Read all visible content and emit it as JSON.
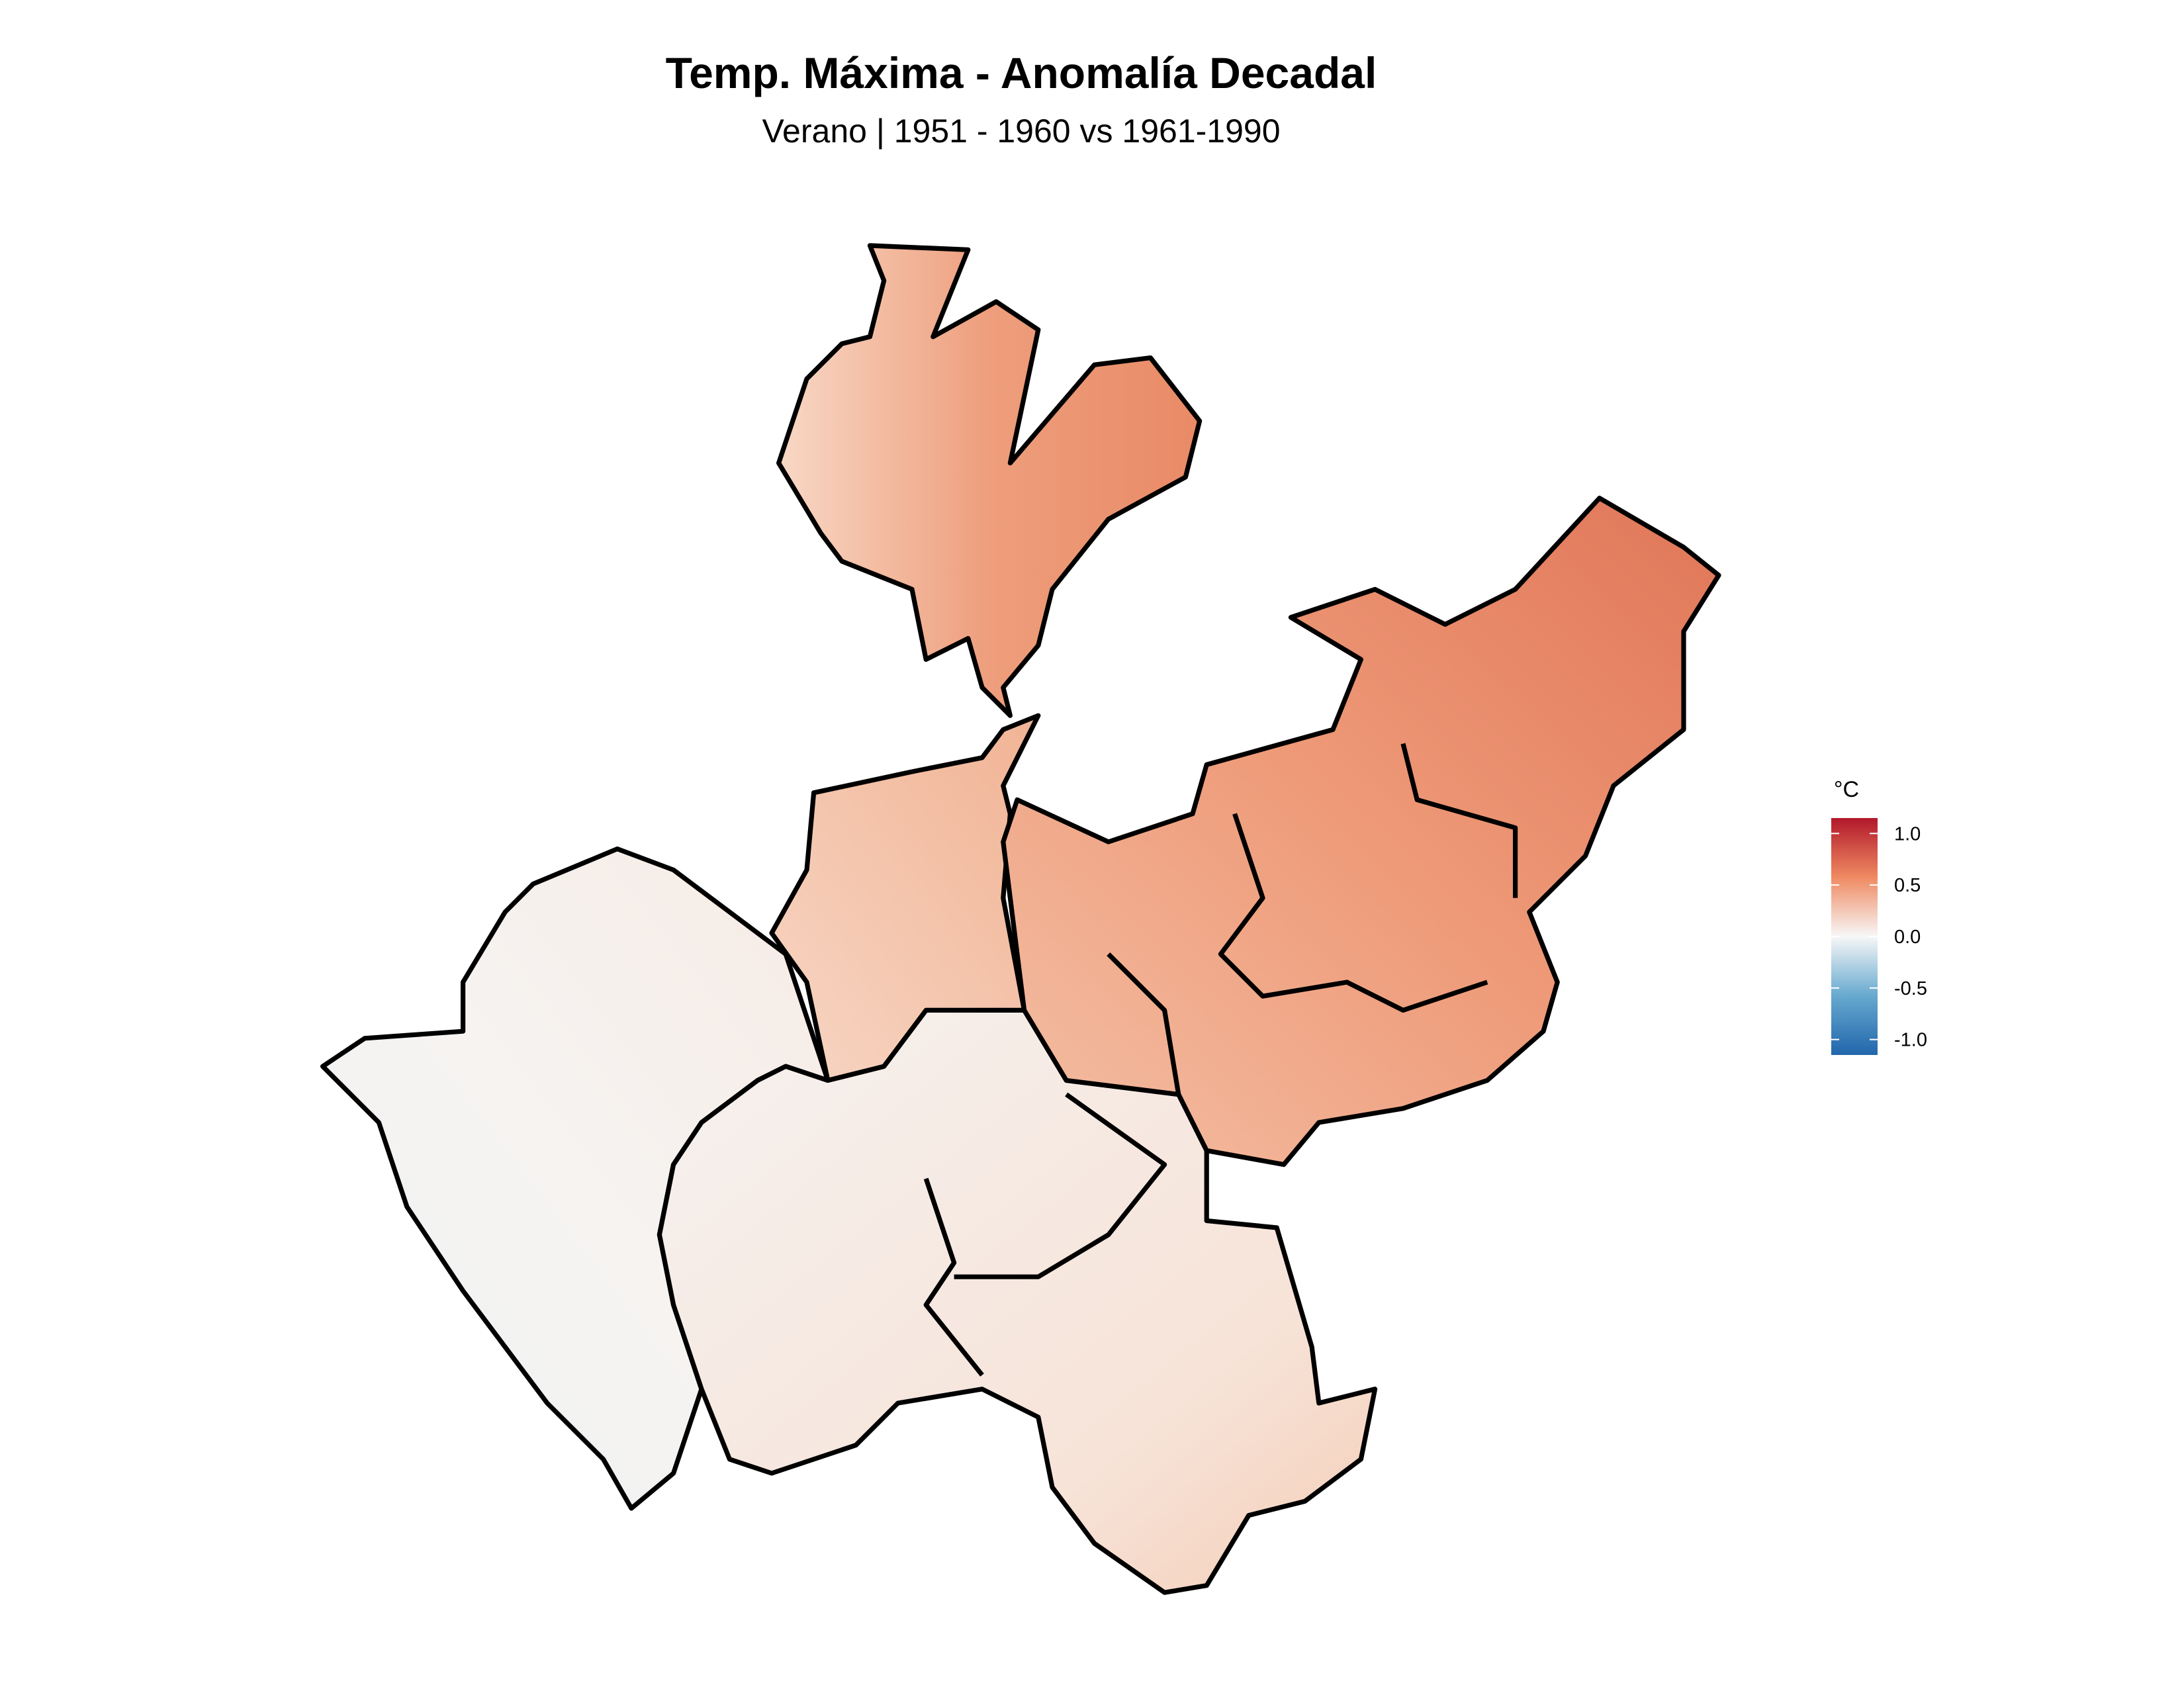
{
  "map": {
    "title": "Temp. Máxima - Anomalía Decadal",
    "subtitle": "Verano | 1951 - 1960 vs 1961-1990",
    "legend": {
      "title": "°C",
      "lim": [
        -1.15,
        1.15
      ],
      "ticks": [
        {
          "value": 1,
          "label": "1.0"
        },
        {
          "value": 0.5,
          "label": "0.5"
        },
        {
          "value": 0,
          "label": "0.0"
        },
        {
          "value": -0.5,
          "label": "-0.5"
        },
        {
          "value": -1,
          "label": "-1.0"
        }
      ],
      "colors": [
        "#b2182b",
        "#ef8a62",
        "#f7f7f7",
        "#67a9cf",
        "#2166ac"
      ]
    }
  }
}
